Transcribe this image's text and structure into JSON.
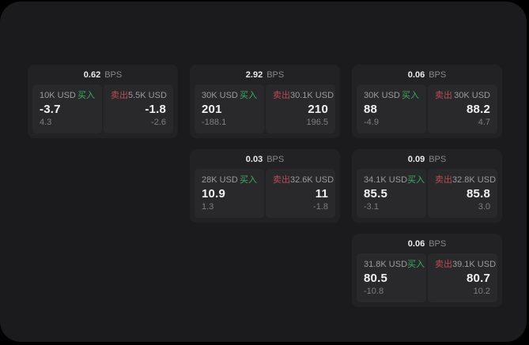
{
  "labels": {
    "buy": "买入",
    "sell": "卖出",
    "bps_suffix": "BPS"
  },
  "colors": {
    "background": "#000000",
    "panel": "#1b1b1d",
    "card": "#222224",
    "tile": "#29292b",
    "buy_green": "#3cab62",
    "sell_red": "#b84c57",
    "value_text": "#f2f2f3",
    "label_text": "#9a9a9c",
    "muted_text": "#7e7e81"
  },
  "cards": [
    {
      "bps": "0.62",
      "buy": {
        "amount": "10K USD",
        "value": "-3.7",
        "delta": "4.3"
      },
      "sell": {
        "amount": "5.5K USD",
        "value": "-1.8",
        "delta": "-2.6"
      }
    },
    {
      "bps": "2.92",
      "buy": {
        "amount": "30K USD",
        "value": "201",
        "delta": "-188.1"
      },
      "sell": {
        "amount": "30.1K USD",
        "value": "210",
        "delta": "196.5"
      }
    },
    {
      "bps": "0.06",
      "buy": {
        "amount": "30K USD",
        "value": "88",
        "delta": "-4.9"
      },
      "sell": {
        "amount": "30K USD",
        "value": "88.2",
        "delta": "4.7"
      }
    },
    {
      "bps": "0.03",
      "buy": {
        "amount": "28K USD",
        "value": "10.9",
        "delta": "1.3"
      },
      "sell": {
        "amount": "32.6K USD",
        "value": "11",
        "delta": "-1.8"
      }
    },
    {
      "bps": "0.09",
      "buy": {
        "amount": "34.1K USD",
        "value": "85.5",
        "delta": "-3.1"
      },
      "sell": {
        "amount": "32.8K USD",
        "value": "85.8",
        "delta": "3.0"
      }
    },
    {
      "bps": "0.06",
      "buy": {
        "amount": "31.8K USD",
        "value": "80.5",
        "delta": "-10.8"
      },
      "sell": {
        "amount": "39.1K USD",
        "value": "80.7",
        "delta": "10.2"
      }
    }
  ]
}
